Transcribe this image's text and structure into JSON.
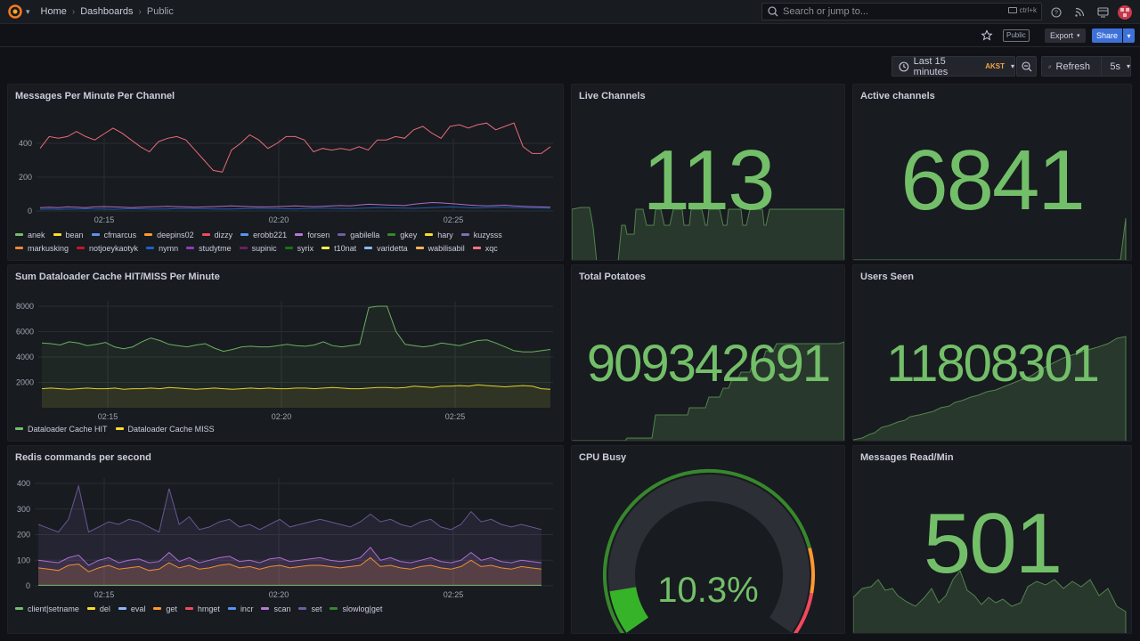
{
  "nav": {
    "breadcrumbs": [
      {
        "label": "Home"
      },
      {
        "label": "Dashboards"
      },
      {
        "label": "Public"
      }
    ],
    "search_placeholder": "Search or jump to...",
    "search_shortcut": "ctrl+k"
  },
  "toolbar": {
    "public_tag": "Public",
    "export_label": "Export",
    "share_label": "Share"
  },
  "time": {
    "range_label": "Last 15 minutes",
    "timezone": "AKST",
    "refresh_label": "Refresh",
    "refresh_interval": "5s"
  },
  "panels": {
    "messages_per_minute": {
      "title": "Messages Per Minute Per Channel",
      "legend": [
        {
          "name": "anek",
          "color": "#73bf69"
        },
        {
          "name": "bean",
          "color": "#fade2a"
        },
        {
          "name": "cfmarcus",
          "color": "#5794f2"
        },
        {
          "name": "deepins02",
          "color": "#ff9830"
        },
        {
          "name": "dizzy",
          "color": "#f2495c"
        },
        {
          "name": "erobb221",
          "color": "#5794f2"
        },
        {
          "name": "forsen",
          "color": "#b877d9"
        },
        {
          "name": "gabilella",
          "color": "#705da0"
        },
        {
          "name": "gkey",
          "color": "#37872d"
        },
        {
          "name": "hary",
          "color": "#fade2a"
        },
        {
          "name": "kuzysss",
          "color": "#806eb7"
        },
        {
          "name": "markusking",
          "color": "#ef843c"
        },
        {
          "name": "notjoeykaotyk",
          "color": "#c4162a"
        },
        {
          "name": "nymn",
          "color": "#1f60c4"
        },
        {
          "name": "studytme",
          "color": "#8f3bb8"
        },
        {
          "name": "supinic",
          "color": "#6d1f62"
        },
        {
          "name": "syrix",
          "color": "#19730e"
        },
        {
          "name": "t10nat",
          "color": "#ffee52"
        },
        {
          "name": "varidetta",
          "color": "#8ab8ff"
        },
        {
          "name": "wabilisabil",
          "color": "#ffb357"
        },
        {
          "name": "xqc",
          "color": "#ff7383"
        }
      ]
    },
    "dataloader_cache": {
      "title": "Sum Dataloader Cache HIT/MISS Per Minute",
      "legend": [
        {
          "name": "Dataloader Cache HIT",
          "color": "#73bf69"
        },
        {
          "name": "Dataloader Cache MISS",
          "color": "#fade2a"
        }
      ]
    },
    "redis_commands": {
      "title": "Redis commands per second",
      "legend": [
        {
          "name": "client|setname",
          "color": "#73bf69"
        },
        {
          "name": "del",
          "color": "#fade2a"
        },
        {
          "name": "eval",
          "color": "#8ab8ff"
        },
        {
          "name": "get",
          "color": "#ff9830"
        },
        {
          "name": "hmget",
          "color": "#f2495c"
        },
        {
          "name": "incr",
          "color": "#5794f2"
        },
        {
          "name": "scan",
          "color": "#b877d9"
        },
        {
          "name": "set",
          "color": "#705da0"
        },
        {
          "name": "slowlog|get",
          "color": "#37872d"
        }
      ]
    },
    "live_channels": {
      "title": "Live Channels",
      "value": "113"
    },
    "active_channels": {
      "title": "Active channels",
      "value": "6841"
    },
    "total_potatoes": {
      "title": "Total Potatoes",
      "value": "909342691"
    },
    "users_seen": {
      "title": "Users Seen",
      "value": "11808301"
    },
    "cpu_busy": {
      "title": "CPU Busy",
      "value": "10.3%",
      "percent": 10.3
    },
    "messages_read": {
      "title": "Messages Read/Min",
      "value": "501"
    }
  },
  "chart_data": [
    {
      "type": "line",
      "title": "Messages Per Minute Per Channel",
      "x_ticks": [
        "02:15",
        "02:20",
        "02:25"
      ],
      "ylim": [
        0,
        400
      ],
      "y_ticks": [
        0,
        200,
        400
      ],
      "series": [
        {
          "name": "xqc",
          "values": [
            370,
            440,
            430,
            440,
            470,
            440,
            420,
            455,
            490,
            460,
            420,
            380,
            350,
            410,
            430,
            440,
            420,
            360,
            300,
            240,
            230,
            360,
            400,
            450,
            420,
            370,
            400,
            440,
            440,
            420,
            350,
            370,
            360,
            370,
            360,
            380,
            360,
            420,
            420,
            440,
            430,
            480,
            500,
            460,
            430,
            500,
            510,
            490,
            510,
            520,
            480,
            500,
            520,
            380,
            340,
            340,
            380
          ]
        },
        {
          "name": "forsen",
          "values": [
            20,
            22,
            20,
            24,
            22,
            20,
            24,
            26,
            24,
            22,
            20,
            22,
            24,
            26,
            28,
            26,
            24,
            22,
            24,
            26,
            28,
            30,
            28,
            26,
            24,
            24,
            26,
            28,
            30,
            28,
            26,
            28,
            30,
            32,
            30,
            35,
            40,
            38,
            36,
            34,
            32,
            40,
            45,
            50,
            48,
            44,
            40,
            36,
            32,
            30,
            32,
            34,
            30,
            28,
            26,
            24,
            22
          ]
        },
        {
          "name": "nymn",
          "values": [
            10,
            12,
            10,
            11,
            12,
            13,
            12,
            11,
            10,
            12,
            14,
            13,
            12,
            11,
            12,
            14,
            15,
            14,
            13,
            12,
            11,
            12,
            13,
            14,
            16,
            15,
            14,
            13,
            12,
            14,
            16,
            17,
            16,
            15,
            14,
            16,
            18,
            20,
            19,
            18,
            17,
            16,
            18,
            20,
            22,
            24,
            22,
            20,
            18,
            20,
            22,
            21,
            20,
            19,
            18,
            17,
            16
          ]
        }
      ]
    },
    {
      "type": "line",
      "title": "Sum Dataloader Cache HIT/MISS Per Minute",
      "x_ticks": [
        "02:15",
        "02:20",
        "02:25"
      ],
      "ylim": [
        0,
        8000
      ],
      "y_ticks": [
        2000,
        4000,
        6000,
        8000
      ],
      "series": [
        {
          "name": "Dataloader Cache HIT",
          "values": [
            5100,
            5050,
            4950,
            5200,
            5100,
            4900,
            5000,
            5150,
            4800,
            4650,
            4800,
            5200,
            5500,
            5300,
            5000,
            4900,
            4800,
            4950,
            5050,
            4700,
            4450,
            4600,
            4800,
            4850,
            4800,
            4800,
            4900,
            5000,
            4900,
            4850,
            4950,
            5200,
            4900,
            4800,
            4900,
            5000,
            7900,
            8000,
            8000,
            6000,
            5000,
            4900,
            4800,
            4900,
            5100,
            5000,
            4900,
            5100,
            5300,
            5350,
            5100,
            4800,
            4500,
            4400,
            4400,
            4500,
            4600
          ]
        },
        {
          "name": "Dataloader Cache MISS",
          "values": [
            1500,
            1550,
            1500,
            1450,
            1500,
            1550,
            1500,
            1500,
            1550,
            1450,
            1500,
            1500,
            1550,
            1500,
            1600,
            1550,
            1500,
            1450,
            1500,
            1550,
            1500,
            1450,
            1500,
            1550,
            1500,
            1550,
            1500,
            1500,
            1550,
            1550,
            1500,
            1550,
            1600,
            1550,
            1500,
            1500,
            1550,
            1600,
            1600,
            1550,
            1600,
            1700,
            1650,
            1600,
            1700,
            1700,
            1750,
            1700,
            1800,
            1750,
            1700,
            1650,
            1700,
            1750,
            1700,
            1500,
            1450
          ]
        }
      ]
    },
    {
      "type": "area",
      "title": "Redis commands per second",
      "x_ticks": [
        "02:15",
        "02:20",
        "02:25"
      ],
      "ylim": [
        0,
        400
      ],
      "y_ticks": [
        0,
        100,
        200,
        300,
        400
      ],
      "series": [
        {
          "name": "set",
          "values": [
            240,
            225,
            210,
            260,
            390,
            210,
            230,
            250,
            240,
            260,
            250,
            230,
            210,
            380,
            240,
            270,
            220,
            230,
            250,
            260,
            230,
            240,
            220,
            240,
            260,
            230,
            240,
            250,
            260,
            250,
            240,
            230,
            250,
            280,
            250,
            260,
            240,
            230,
            250,
            260,
            230,
            220,
            240,
            290,
            250,
            260,
            240,
            230,
            240,
            230,
            220
          ]
        },
        {
          "name": "scan",
          "values": [
            100,
            95,
            90,
            110,
            120,
            80,
            100,
            110,
            90,
            100,
            105,
            90,
            95,
            130,
            95,
            110,
            90,
            100,
            110,
            115,
            95,
            100,
            90,
            105,
            110,
            95,
            100,
            105,
            110,
            100,
            95,
            100,
            110,
            150,
            100,
            110,
            95,
            90,
            100,
            110,
            95,
            90,
            100,
            130,
            100,
            110,
            95,
            90,
            100,
            95,
            90
          ]
        },
        {
          "name": "get",
          "values": [
            70,
            65,
            60,
            80,
            85,
            55,
            70,
            80,
            65,
            70,
            75,
            60,
            65,
            90,
            70,
            80,
            65,
            70,
            80,
            85,
            70,
            75,
            65,
            75,
            80,
            70,
            75,
            80,
            80,
            75,
            70,
            75,
            80,
            110,
            75,
            80,
            70,
            65,
            75,
            80,
            70,
            65,
            75,
            100,
            75,
            80,
            70,
            65,
            75,
            70,
            65
          ]
        },
        {
          "name": "client|setname",
          "values": [
            2,
            2,
            2,
            2,
            2,
            2,
            2,
            2,
            2,
            2,
            2,
            2,
            2,
            2,
            2,
            2,
            2,
            2,
            2,
            2,
            2,
            2,
            2,
            2,
            2,
            2,
            2,
            2,
            2,
            2,
            2,
            2,
            2,
            2,
            2,
            2,
            2,
            2,
            2,
            2,
            2,
            2,
            2,
            2,
            2,
            2,
            2,
            2,
            2,
            2,
            2
          ]
        }
      ]
    }
  ]
}
